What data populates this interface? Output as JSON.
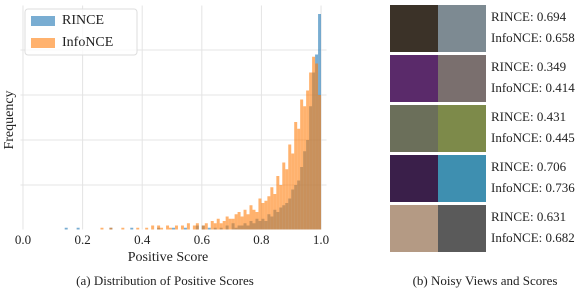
{
  "chart_data": {
    "type": "histogram",
    "xlabel": "Positive Score",
    "ylabel": "Frequency",
    "bins": [
      0,
      0.01,
      0.02,
      0.03,
      0.04,
      0.05,
      0.06,
      0.07,
      0.08,
      0.09,
      0.1,
      0.11,
      0.12,
      0.13,
      0.14,
      0.15,
      0.16,
      0.17,
      0.18,
      0.19,
      0.2,
      0.21,
      0.22,
      0.23,
      0.24,
      0.25,
      0.26,
      0.27,
      0.28,
      0.29,
      0.3,
      0.31,
      0.32,
      0.33,
      0.34,
      0.35,
      0.36,
      0.37,
      0.38,
      0.39,
      0.4,
      0.41,
      0.42,
      0.43,
      0.44,
      0.45,
      0.46,
      0.47,
      0.48,
      0.49,
      0.5,
      0.51,
      0.52,
      0.53,
      0.54,
      0.55,
      0.56,
      0.57,
      0.58,
      0.59,
      0.6,
      0.61,
      0.62,
      0.63,
      0.64,
      0.65,
      0.66,
      0.67,
      0.68,
      0.69,
      0.7,
      0.71,
      0.72,
      0.73,
      0.74,
      0.75,
      0.76,
      0.77,
      0.78,
      0.79,
      0.8,
      0.81,
      0.82,
      0.83,
      0.84,
      0.85,
      0.86,
      0.87,
      0.88,
      0.89,
      0.9,
      0.91,
      0.92,
      0.93,
      0.94,
      0.95,
      0.96,
      0.97,
      0.98,
      0.99,
      1.0
    ],
    "series": [
      {
        "name": "RINCE",
        "color": "#1f77b4",
        "values": [
          0,
          0,
          0,
          0,
          0,
          0,
          0,
          0,
          0,
          0,
          0,
          0,
          0,
          0,
          1,
          0,
          0,
          0,
          1,
          0,
          0,
          0,
          0,
          0,
          0,
          0,
          0,
          0,
          0,
          1,
          0,
          0,
          0,
          0,
          0,
          0,
          1,
          0,
          0,
          0,
          0,
          0,
          0,
          0,
          0,
          1,
          0,
          0,
          0,
          0,
          1,
          0,
          0,
          0,
          1,
          0,
          0,
          0,
          2,
          0,
          2,
          0,
          1,
          0,
          1,
          0,
          1,
          0,
          2,
          0,
          3,
          1,
          2,
          2,
          3,
          2,
          4,
          3,
          5,
          4,
          5,
          4,
          7,
          6,
          9,
          8,
          10,
          11,
          12,
          14,
          18,
          20,
          22,
          28,
          35,
          40,
          55,
          70,
          78,
          96
        ]
      },
      {
        "name": "InfoNCE",
        "color": "#ff7f0e",
        "values": [
          0,
          0,
          0,
          0,
          0,
          0,
          0,
          0,
          0,
          0,
          0,
          0,
          0,
          0,
          0,
          0,
          0,
          0,
          0,
          0,
          0,
          0,
          0,
          0,
          0,
          0,
          1,
          0,
          0,
          1,
          0,
          0,
          0,
          1,
          0,
          0,
          0,
          0,
          1,
          0,
          0,
          1,
          0,
          2,
          0,
          2,
          1,
          0,
          2,
          1,
          0,
          2,
          0,
          2,
          0,
          3,
          0,
          2,
          3,
          0,
          2,
          3,
          0,
          4,
          3,
          5,
          3,
          4,
          6,
          5,
          5,
          7,
          8,
          6,
          9,
          7,
          11,
          9,
          8,
          14,
          12,
          13,
          15,
          19,
          16,
          24,
          20,
          30,
          27,
          38,
          34,
          48,
          45,
          58,
          55,
          62,
          70,
          77,
          74,
          60
        ]
      }
    ],
    "xlim": [
      -0.01,
      1.02
    ],
    "ylim": [
      0,
      100
    ],
    "xticks": [
      {
        "value": 0,
        "label": "0.0"
      },
      {
        "value": 0.2,
        "label": "0.2"
      },
      {
        "value": 0.4,
        "label": "0.4"
      },
      {
        "value": 0.6,
        "label": "0.6"
      },
      {
        "value": 0.8,
        "label": "0.8"
      },
      {
        "value": 1,
        "label": "1.0"
      }
    ],
    "grid": true,
    "legend": "upper left",
    "opacity": 0.6
  },
  "captions": {
    "left": "(a) Distribution of Positive Scores",
    "right": "(b) Noisy Views and Scores"
  },
  "views": [
    {
      "rince": "RINCE: 0.694",
      "infonce": "InfoNCE: 0.658"
    },
    {
      "rince": "RINCE: 0.349",
      "infonce": "InfoNCE: 0.414"
    },
    {
      "rince": "RINCE: 0.431",
      "infonce": "InfoNCE: 0.445"
    },
    {
      "rince": "RINCE: 0.706",
      "infonce": "InfoNCE: 0.736"
    },
    {
      "rince": "RINCE: 0.631",
      "infonce": "InfoNCE: 0.682"
    }
  ]
}
